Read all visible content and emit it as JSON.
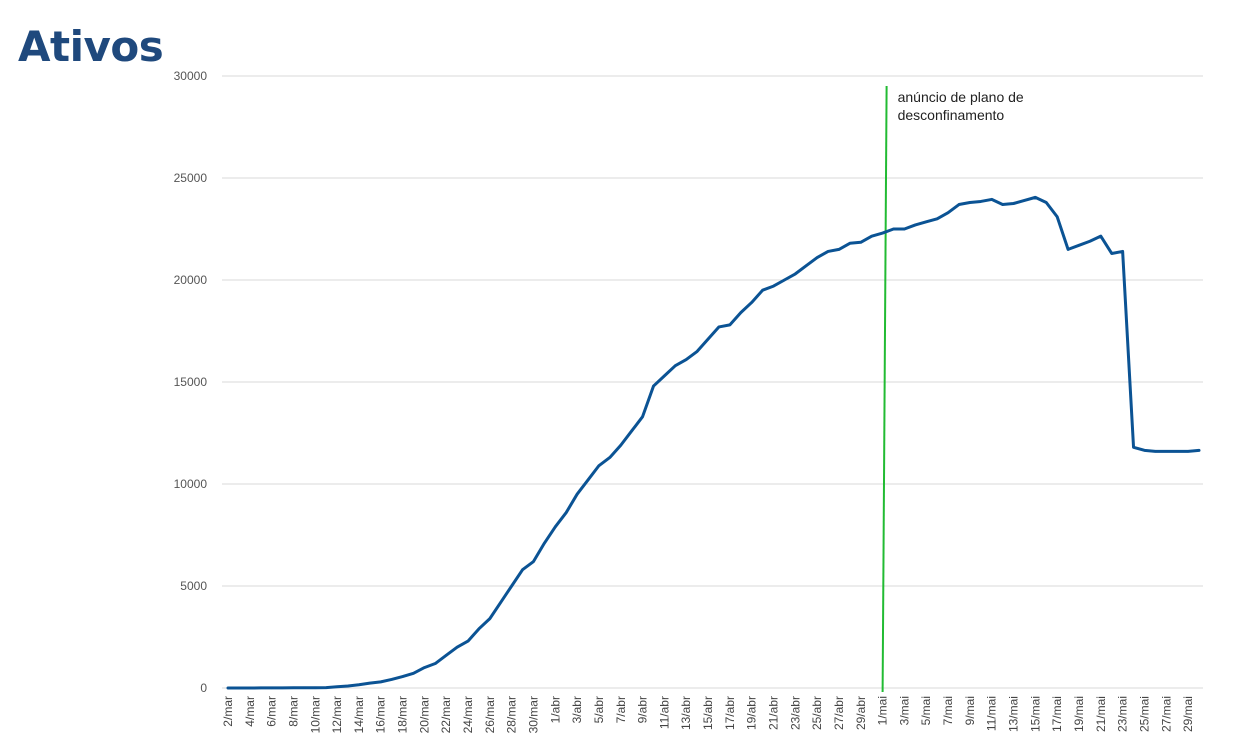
{
  "page": {
    "title": "Ativos"
  },
  "chart_data": {
    "type": "line",
    "title": "",
    "xlabel": "",
    "ylabel": "",
    "ylim": [
      0,
      30000
    ],
    "y_ticks": [
      0,
      5000,
      10000,
      15000,
      20000,
      25000,
      30000
    ],
    "grid": true,
    "legend": "none",
    "colors": {
      "series": "#0b5394",
      "annotation_line": "#22bb33",
      "grid": "#d9d9d9"
    },
    "x": [
      "2/mar",
      "3/mar",
      "4/mar",
      "5/mar",
      "6/mar",
      "7/mar",
      "8/mar",
      "9/mar",
      "10/mar",
      "11/mar",
      "12/mar",
      "13/mar",
      "14/mar",
      "15/mar",
      "16/mar",
      "17/mar",
      "18/mar",
      "19/mar",
      "20/mar",
      "21/mar",
      "22/mar",
      "23/mar",
      "24/mar",
      "25/mar",
      "26/mar",
      "27/mar",
      "28/mar",
      "29/mar",
      "30/mar",
      "31/mar",
      "1/abr",
      "2/abr",
      "3/abr",
      "4/abr",
      "5/abr",
      "6/abr",
      "7/abr",
      "8/abr",
      "9/abr",
      "10/abr",
      "11/abr",
      "12/abr",
      "13/abr",
      "14/abr",
      "15/abr",
      "16/abr",
      "17/abr",
      "18/abr",
      "19/abr",
      "20/abr",
      "21/abr",
      "22/abr",
      "23/abr",
      "24/abr",
      "25/abr",
      "26/abr",
      "27/abr",
      "28/abr",
      "29/abr",
      "30/abr",
      "1/mai",
      "2/mai",
      "3/mai",
      "4/mai",
      "5/mai",
      "6/mai",
      "7/mai",
      "8/mai",
      "9/mai",
      "10/mai",
      "11/mai",
      "12/mai",
      "13/mai",
      "14/mai",
      "15/mai",
      "16/mai",
      "17/mai",
      "18/mai",
      "19/mai",
      "20/mai",
      "21/mai",
      "22/mai",
      "23/mai",
      "24/mai",
      "25/mai",
      "26/mai",
      "27/mai",
      "28/mai",
      "29/mai",
      "30/mai"
    ],
    "x_tick_labels": [
      "2/mar",
      "4/mar",
      "6/mar",
      "8/mar",
      "10/mar",
      "12/mar",
      "14/mar",
      "16/mar",
      "18/mar",
      "20/mar",
      "22/mar",
      "24/mar",
      "26/mar",
      "28/mar",
      "30/mar",
      "1/abr",
      "3/abr",
      "5/abr",
      "7/abr",
      "9/abr",
      "11/abr",
      "13/abr",
      "15/abr",
      "17/abr",
      "19/abr",
      "21/abr",
      "23/abr",
      "25/abr",
      "27/abr",
      "29/abr",
      "1/mai",
      "3/mai",
      "5/mai",
      "7/mai",
      "9/mai",
      "11/mai",
      "13/mai",
      "15/mai",
      "17/mai",
      "19/mai",
      "21/mai",
      "23/mai",
      "25/mai",
      "27/mai",
      "29/mai"
    ],
    "series": [
      {
        "values": [
          0,
          0,
          2,
          4,
          6,
          8,
          10,
          12,
          14,
          16,
          60,
          100,
          160,
          240,
          300,
          420,
          560,
          720,
          1000,
          1200,
          1600,
          2000,
          2300,
          2900,
          3400,
          4200,
          5000,
          5800,
          6200,
          7100,
          7900,
          8600,
          9500,
          10200,
          10900,
          11300,
          11900,
          12600,
          13300,
          14800,
          15300,
          15800,
          16100,
          16500,
          17100,
          17700,
          17800,
          18400,
          18900,
          19500,
          19700,
          20000,
          20300,
          20700,
          21100,
          21400,
          21500,
          21800,
          21850,
          22150,
          22300,
          22500,
          22500,
          22700,
          22850,
          23000,
          23300,
          23700,
          23800,
          23850,
          23950,
          23700,
          23750,
          23900,
          24050,
          23800,
          23100,
          21500,
          21700,
          21900,
          22150,
          21300,
          21400,
          11800,
          11650,
          11600,
          11600,
          11600,
          11600,
          11650
        ]
      }
    ],
    "annotation": {
      "text_line1": "anúncio de plano de",
      "text_line2": "desconfinamento",
      "x": "1/mai"
    }
  }
}
